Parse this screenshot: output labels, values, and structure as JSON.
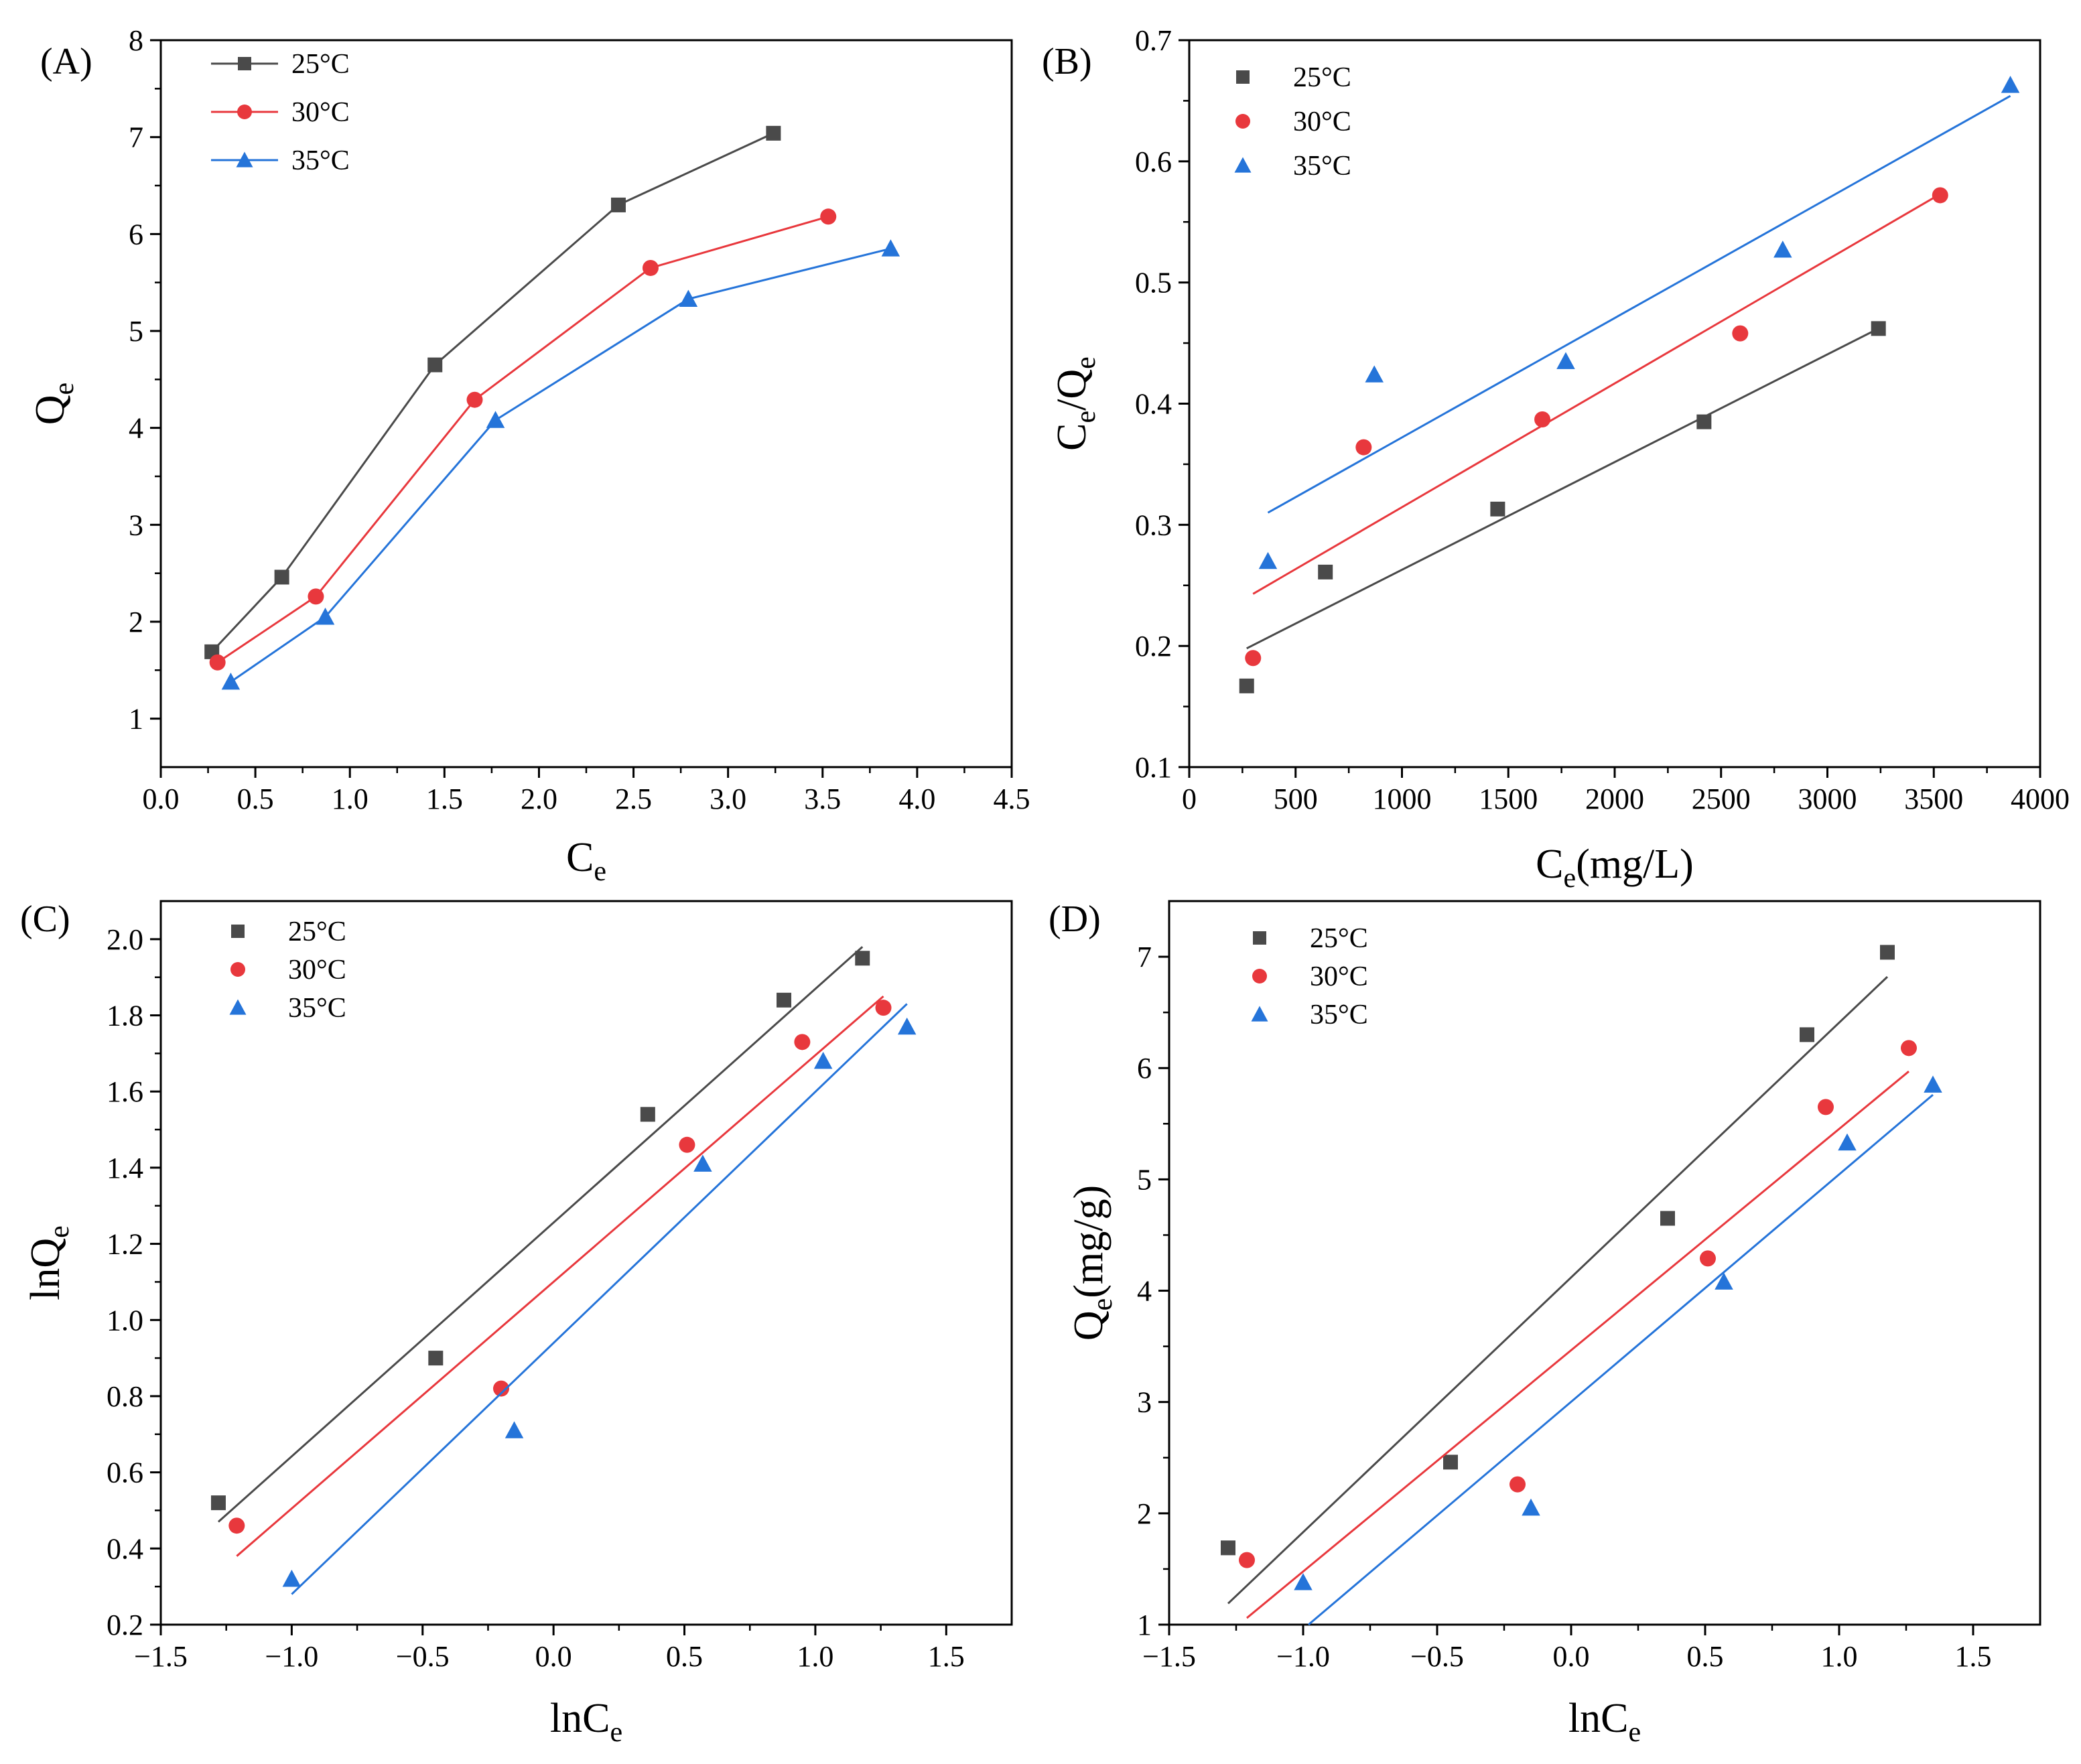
{
  "colors": {
    "t25": "#4a4a4a",
    "t30": "#e8383d",
    "t35": "#2574d9",
    "axis": "#000000"
  },
  "chart_data": [
    {
      "panel": "A",
      "panel_label": "(A)",
      "type": "line",
      "xlabel": {
        "main": "C",
        "sub": "e",
        "suffix": ""
      },
      "ylabel": {
        "main": "Q",
        "sub": "e",
        "suffix": ""
      },
      "xlim": [
        0,
        4.5
      ],
      "ylim": [
        0.5,
        8
      ],
      "xticks": [
        0,
        0.5,
        1,
        1.5,
        2,
        2.5,
        3,
        3.5,
        4,
        4.5
      ],
      "xtick_labels": [
        "0.0",
        "0.5",
        "1.0",
        "1.5",
        "2.0",
        "2.5",
        "3.0",
        "3.5",
        "4.0",
        "4.5"
      ],
      "yticks": [
        1,
        2,
        3,
        4,
        5,
        6,
        7,
        8
      ],
      "ytick_labels": [
        "1",
        "2",
        "3",
        "4",
        "5",
        "6",
        "7",
        "8"
      ],
      "legend_position": "top-left",
      "legend_lines": true,
      "series": [
        {
          "name": "25°C",
          "key": "t25",
          "marker": "square",
          "x": [
            0.27,
            0.64,
            1.45,
            2.42,
            3.24
          ],
          "y": [
            1.69,
            2.46,
            4.65,
            6.3,
            7.04
          ]
        },
        {
          "name": "30°C",
          "key": "t30",
          "marker": "circle",
          "x": [
            0.3,
            0.82,
            1.66,
            2.59,
            3.53
          ],
          "y": [
            1.58,
            2.26,
            4.29,
            5.65,
            6.18
          ]
        },
        {
          "name": "35°C",
          "key": "t35",
          "marker": "triangle",
          "x": [
            0.37,
            0.87,
            1.77,
            2.79,
            3.86
          ],
          "y": [
            1.38,
            2.05,
            4.08,
            5.33,
            5.85
          ]
        }
      ]
    },
    {
      "panel": "B",
      "panel_label": "(B)",
      "type": "scatter",
      "xlabel": {
        "main": "C",
        "sub": "e",
        "suffix": "(mg/L)"
      },
      "ylabel": {
        "main": "C",
        "sub": "e",
        "mid": "/Q",
        "sub2": "e",
        "suffix": ""
      },
      "xlim": [
        0,
        4000
      ],
      "ylim": [
        0.1,
        0.7
      ],
      "xticks": [
        0,
        500,
        1000,
        1500,
        2000,
        2500,
        3000,
        3500,
        4000
      ],
      "xtick_labels": [
        "0",
        "500",
        "1000",
        "1500",
        "2000",
        "2500",
        "3000",
        "3500",
        "4000"
      ],
      "yticks": [
        0.1,
        0.2,
        0.3,
        0.4,
        0.5,
        0.6,
        0.7
      ],
      "ytick_labels": [
        "0.1",
        "0.2",
        "0.3",
        "0.4",
        "0.5",
        "0.6",
        "0.7"
      ],
      "legend_position": "top-left",
      "legend_lines": false,
      "series": [
        {
          "name": "25°C",
          "key": "t25",
          "marker": "square",
          "x": [
            270,
            640,
            1450,
            2420,
            3240
          ],
          "y": [
            0.167,
            0.261,
            0.313,
            0.385,
            0.462
          ],
          "fit": {
            "x": [
              270,
              3240
            ],
            "y": [
              0.198,
              0.462
            ]
          }
        },
        {
          "name": "30°C",
          "key": "t30",
          "marker": "circle",
          "x": [
            300,
            820,
            1660,
            2590,
            3530
          ],
          "y": [
            0.19,
            0.364,
            0.387,
            0.458,
            0.572
          ],
          "fit": {
            "x": [
              300,
              3530
            ],
            "y": [
              0.243,
              0.573
            ]
          }
        },
        {
          "name": "35°C",
          "key": "t35",
          "marker": "triangle",
          "x": [
            370,
            870,
            1770,
            2790,
            3860
          ],
          "y": [
            0.27,
            0.424,
            0.435,
            0.527,
            0.663
          ],
          "fit": {
            "x": [
              370,
              3860
            ],
            "y": [
              0.31,
              0.654
            ]
          }
        }
      ]
    },
    {
      "panel": "C",
      "panel_label": "(C)",
      "type": "scatter",
      "xlabel": {
        "main": "lnC",
        "sub": "e",
        "suffix": ""
      },
      "ylabel": {
        "main": "lnQ",
        "sub": "e",
        "suffix": ""
      },
      "xlim": [
        -1.5,
        1.75
      ],
      "ylim": [
        0.2,
        2.1
      ],
      "xticks": [
        -1.5,
        -1,
        -0.5,
        0,
        0.5,
        1,
        1.5
      ],
      "xtick_labels": [
        "−1.5",
        "−1.0",
        "−0.5",
        "0.0",
        "0.5",
        "1.0",
        "1.5"
      ],
      "yticks": [
        0.2,
        0.4,
        0.6,
        0.8,
        1.0,
        1.2,
        1.4,
        1.6,
        1.8,
        2.0
      ],
      "ytick_labels": [
        "0.2",
        "0.4",
        "0.6",
        "0.8",
        "1.0",
        "1.2",
        "1.4",
        "1.6",
        "1.8",
        "2.0"
      ],
      "legend_position": "top-left",
      "legend_lines": false,
      "series": [
        {
          "name": "25°C",
          "key": "t25",
          "marker": "square",
          "x": [
            -1.28,
            -0.45,
            0.36,
            0.88,
            1.18
          ],
          "y": [
            0.52,
            0.9,
            1.54,
            1.84,
            1.95
          ],
          "fit": {
            "x": [
              -1.28,
              1.18
            ],
            "y": [
              0.47,
              1.98
            ]
          }
        },
        {
          "name": "30°C",
          "key": "t30",
          "marker": "circle",
          "x": [
            -1.21,
            -0.2,
            0.51,
            0.95,
            1.26
          ],
          "y": [
            0.46,
            0.82,
            1.46,
            1.73,
            1.82
          ],
          "fit": {
            "x": [
              -1.21,
              1.26
            ],
            "y": [
              0.38,
              1.85
            ]
          }
        },
        {
          "name": "35°C",
          "key": "t35",
          "marker": "triangle",
          "x": [
            -1.0,
            -0.15,
            0.57,
            1.03,
            1.35
          ],
          "y": [
            0.32,
            0.71,
            1.41,
            1.68,
            1.77
          ],
          "fit": {
            "x": [
              -1.0,
              1.35
            ],
            "y": [
              0.28,
              1.83
            ]
          }
        }
      ]
    },
    {
      "panel": "D",
      "panel_label": "(D)",
      "type": "scatter",
      "xlabel": {
        "main": "lnC",
        "sub": "e",
        "suffix": ""
      },
      "ylabel": {
        "main": "Q",
        "sub": "e",
        "suffix": "(mg/g)"
      },
      "xlim": [
        -1.5,
        1.75
      ],
      "ylim": [
        1,
        7.5
      ],
      "xticks": [
        -1.5,
        -1,
        -0.5,
        0,
        0.5,
        1,
        1.5
      ],
      "xtick_labels": [
        "−1.5",
        "−1.0",
        "−0.5",
        "0.0",
        "0.5",
        "1.0",
        "1.5"
      ],
      "yticks": [
        1,
        2,
        3,
        4,
        5,
        6,
        7
      ],
      "ytick_labels": [
        "1",
        "2",
        "3",
        "4",
        "5",
        "6",
        "7"
      ],
      "legend_position": "top-left",
      "legend_lines": false,
      "series": [
        {
          "name": "25°C",
          "key": "t25",
          "marker": "square",
          "x": [
            -1.28,
            -0.45,
            0.36,
            0.88,
            1.18
          ],
          "y": [
            1.69,
            2.46,
            4.65,
            6.3,
            7.04
          ],
          "fit": {
            "x": [
              -1.28,
              1.18
            ],
            "y": [
              1.19,
              6.82
            ]
          }
        },
        {
          "name": "30°C",
          "key": "t30",
          "marker": "circle",
          "x": [
            -1.21,
            -0.2,
            0.51,
            0.95,
            1.26
          ],
          "y": [
            1.58,
            2.26,
            4.29,
            5.65,
            6.18
          ],
          "fit": {
            "x": [
              -1.21,
              1.26
            ],
            "y": [
              1.06,
              5.97
            ]
          }
        },
        {
          "name": "35°C",
          "key": "t35",
          "marker": "triangle",
          "x": [
            -1.0,
            -0.15,
            0.57,
            1.03,
            1.35
          ],
          "y": [
            1.38,
            2.05,
            4.08,
            5.33,
            5.85
          ],
          "fit": {
            "x": [
              -0.98,
              1.35
            ],
            "y": [
              1.0,
              5.76
            ]
          }
        }
      ]
    }
  ]
}
